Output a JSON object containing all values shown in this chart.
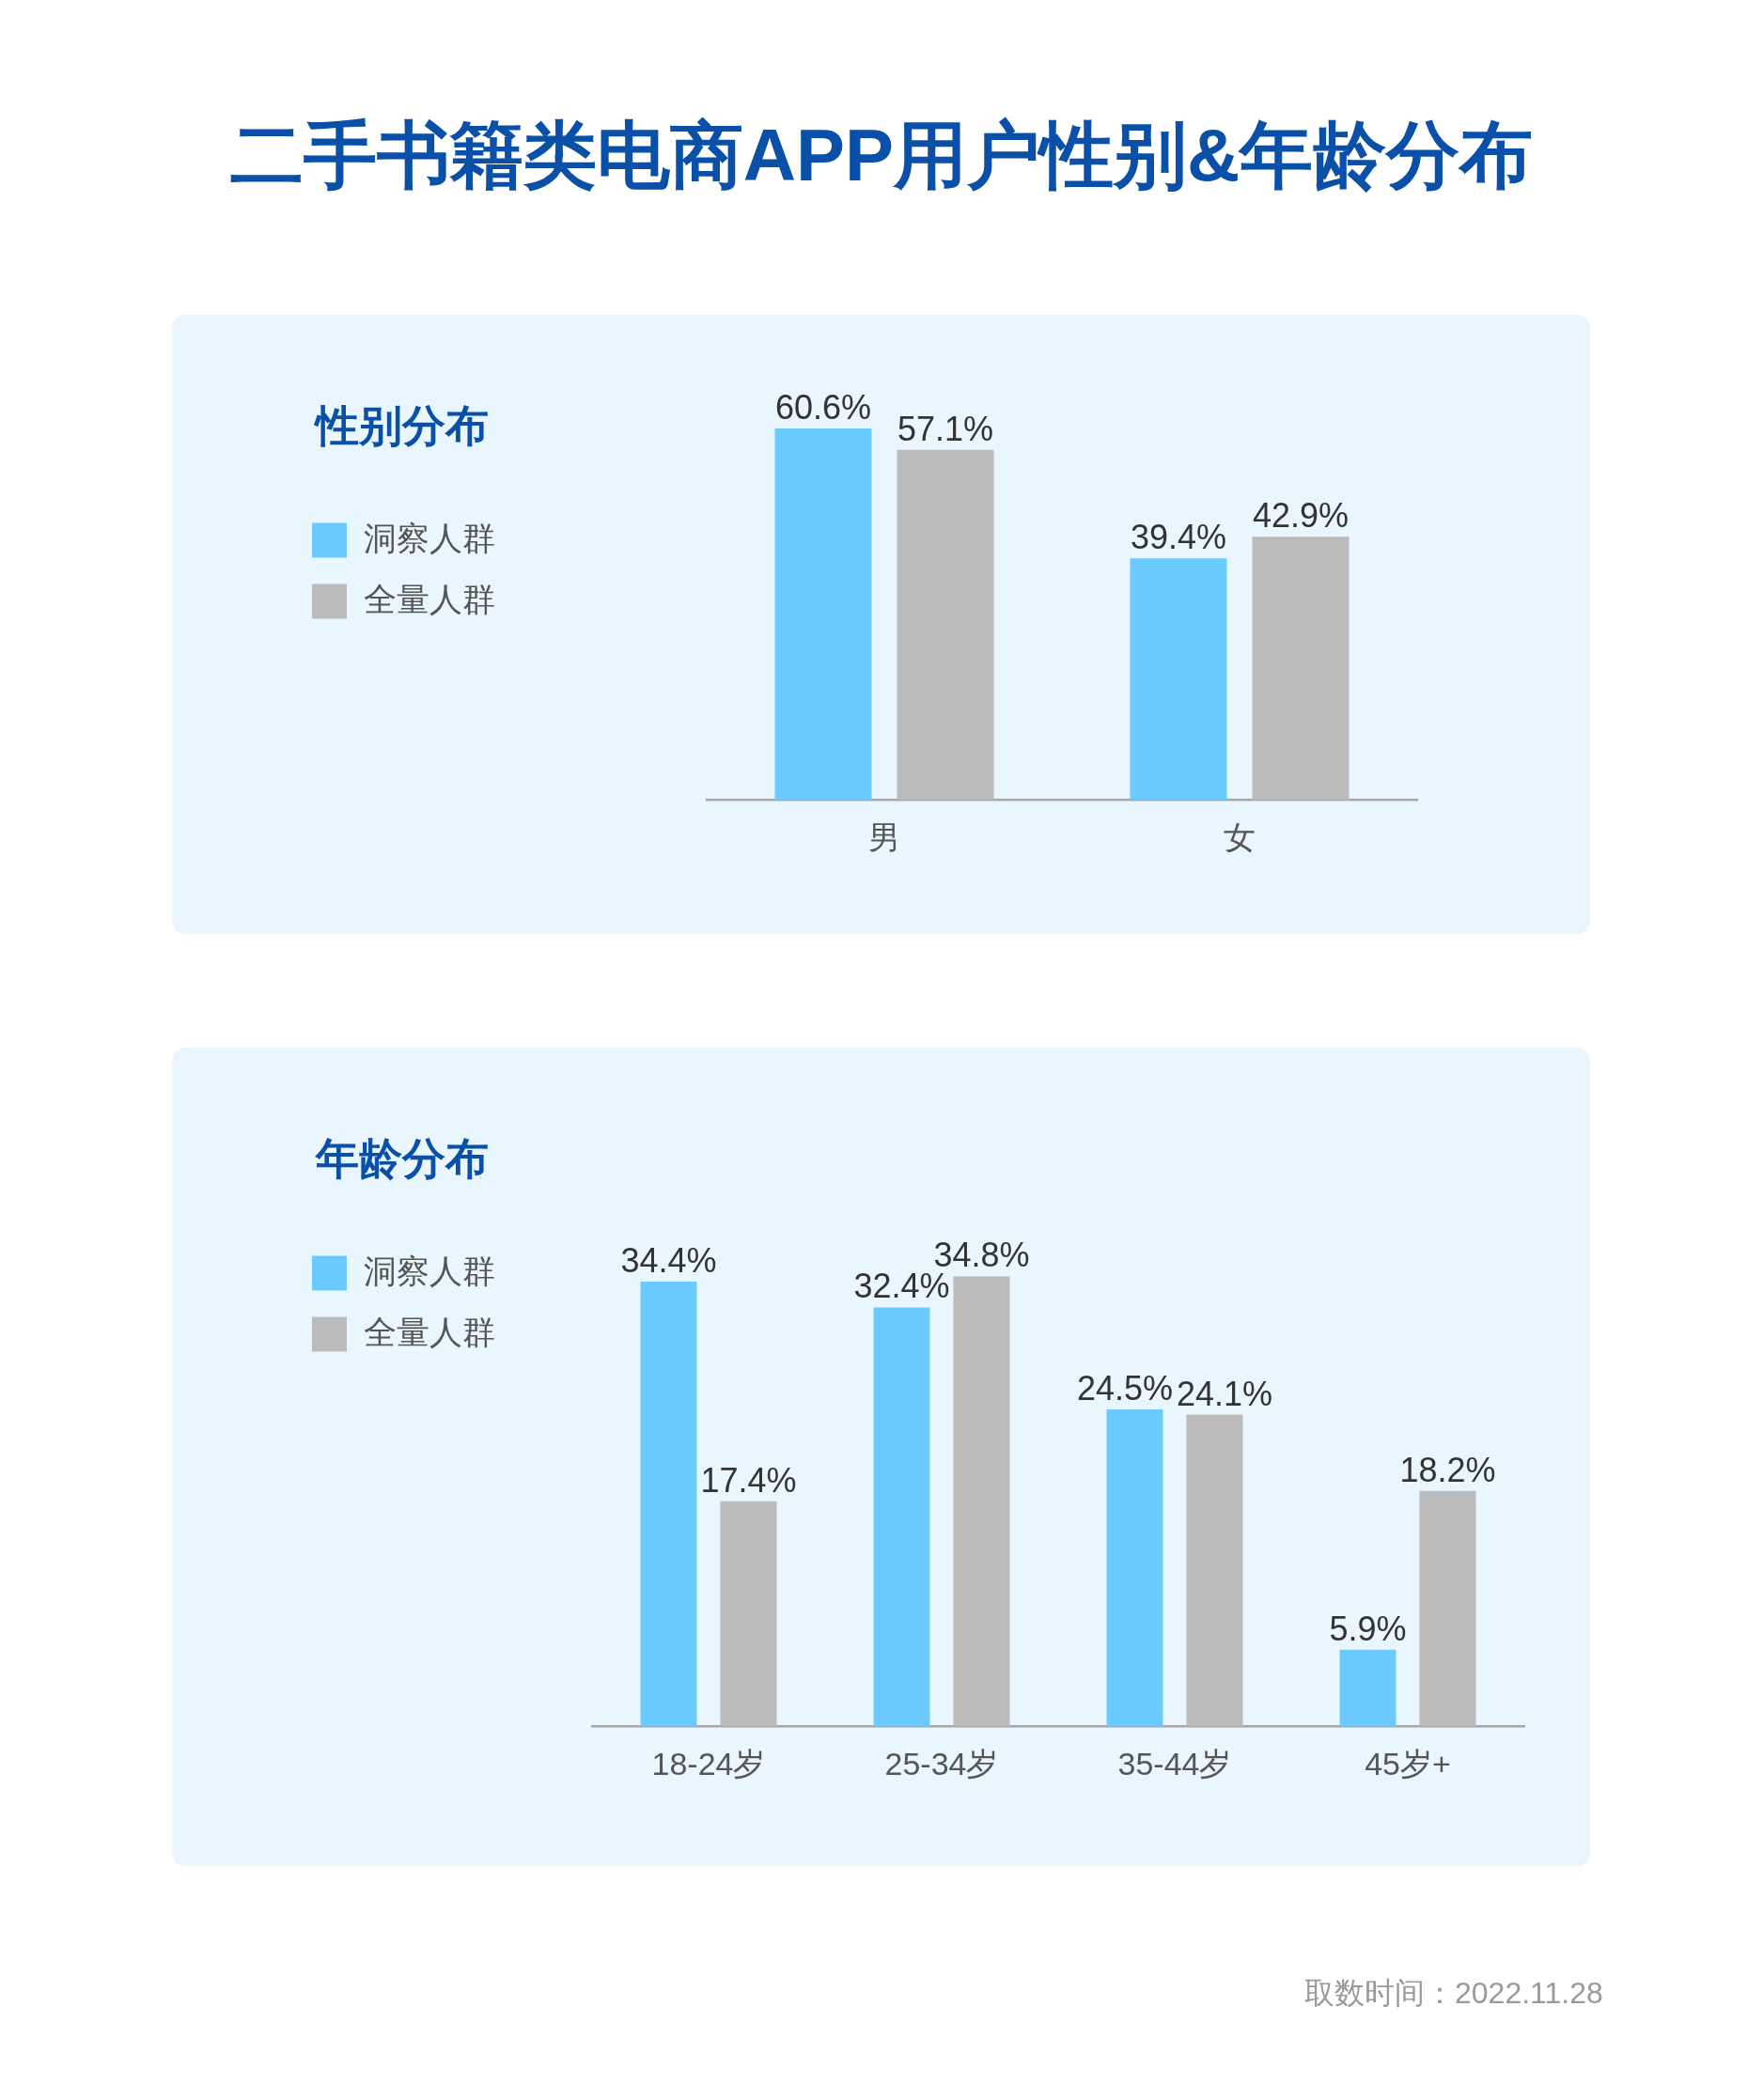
{
  "chart_data": [
    {
      "type": "bar",
      "title": "二手书籍类电商APP用户性别&年龄分布",
      "subtitle": "性别分布",
      "categories": [
        "男",
        "女"
      ],
      "series": [
        {
          "name": "洞察人群",
          "color": "#6ccbfe",
          "values": [
            60.6,
            39.4
          ],
          "value_labels": [
            "60.6%",
            "39.4%"
          ]
        },
        {
          "name": "全量人群",
          "color": "#bbbbbb",
          "values": [
            57.1,
            42.9
          ],
          "value_labels": [
            "57.1%",
            "42.9%"
          ]
        }
      ],
      "legend": "left",
      "tick_labels": "x"
    },
    {
      "type": "bar",
      "subtitle": "年龄分布",
      "categories": [
        "18-24岁",
        "25-34岁",
        "35-44岁",
        "45岁+"
      ],
      "series": [
        {
          "name": "洞察人群",
          "color": "#6ccbfe",
          "values": [
            34.4,
            32.4,
            24.5,
            5.9
          ],
          "value_labels": [
            "34.4%",
            "32.4%",
            "24.5%",
            "5.9%"
          ]
        },
        {
          "name": "全量人群",
          "color": "#bbbbbb",
          "values": [
            17.4,
            34.8,
            24.1,
            18.2
          ],
          "value_labels": [
            "17.4%",
            "34.8%",
            "24.1%",
            "18.2%"
          ]
        }
      ],
      "legend": "left",
      "tick_labels": "x",
      "annotations": [
        "取数时间：2022.11.28"
      ]
    }
  ]
}
